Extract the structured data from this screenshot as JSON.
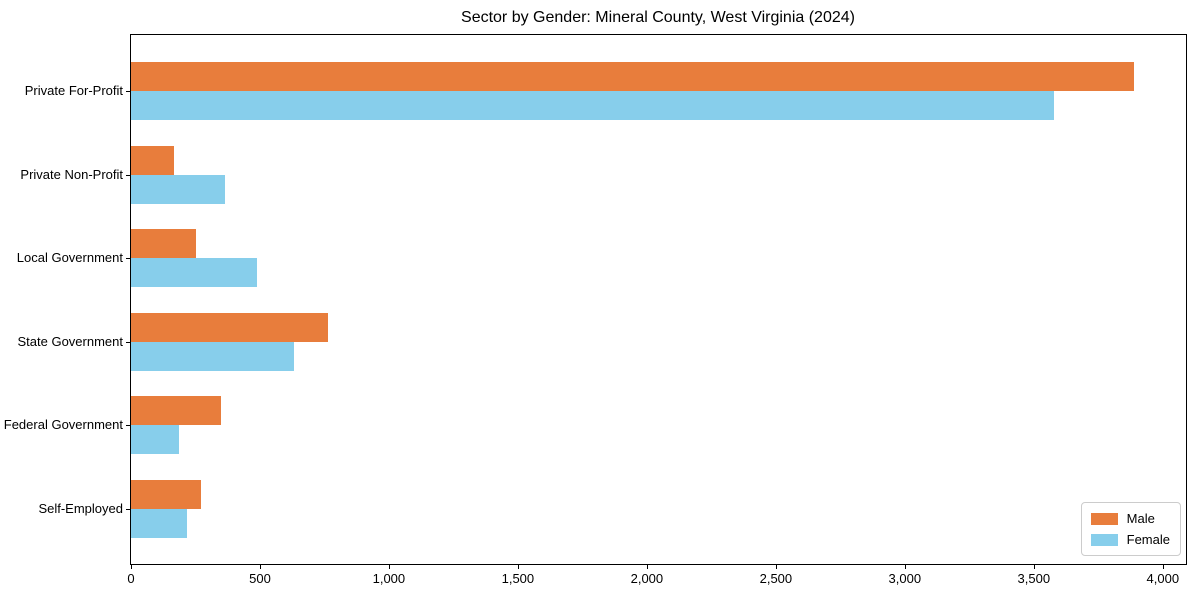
{
  "chart_data": {
    "type": "bar",
    "orientation": "horizontal",
    "title": "Sector by Gender: Mineral County, West Virginia (2024)",
    "categories": [
      "Private For-Profit",
      "Private Non-Profit",
      "Local Government",
      "State Government",
      "Federal Government",
      "Self-Employed"
    ],
    "series": [
      {
        "name": "Male",
        "color": "#e87d3c",
        "values": [
          3890,
          165,
          250,
          765,
          350,
          270
        ]
      },
      {
        "name": "Female",
        "color": "#87ceeb",
        "values": [
          3580,
          365,
          490,
          630,
          185,
          215
        ]
      }
    ],
    "xlabel": "",
    "ylabel": "",
    "xlim": [
      0,
      4090
    ],
    "xticks": [
      0,
      500,
      1000,
      1500,
      2000,
      2500,
      3000,
      3500,
      4000
    ],
    "xtick_labels": [
      "0",
      "500",
      "1,000",
      "1,500",
      "2,000",
      "2,500",
      "3,000",
      "3,500",
      "4,000"
    ],
    "grid": false,
    "legend_position": "lower right",
    "background": "#ffffff",
    "axis_color": "#000000"
  }
}
